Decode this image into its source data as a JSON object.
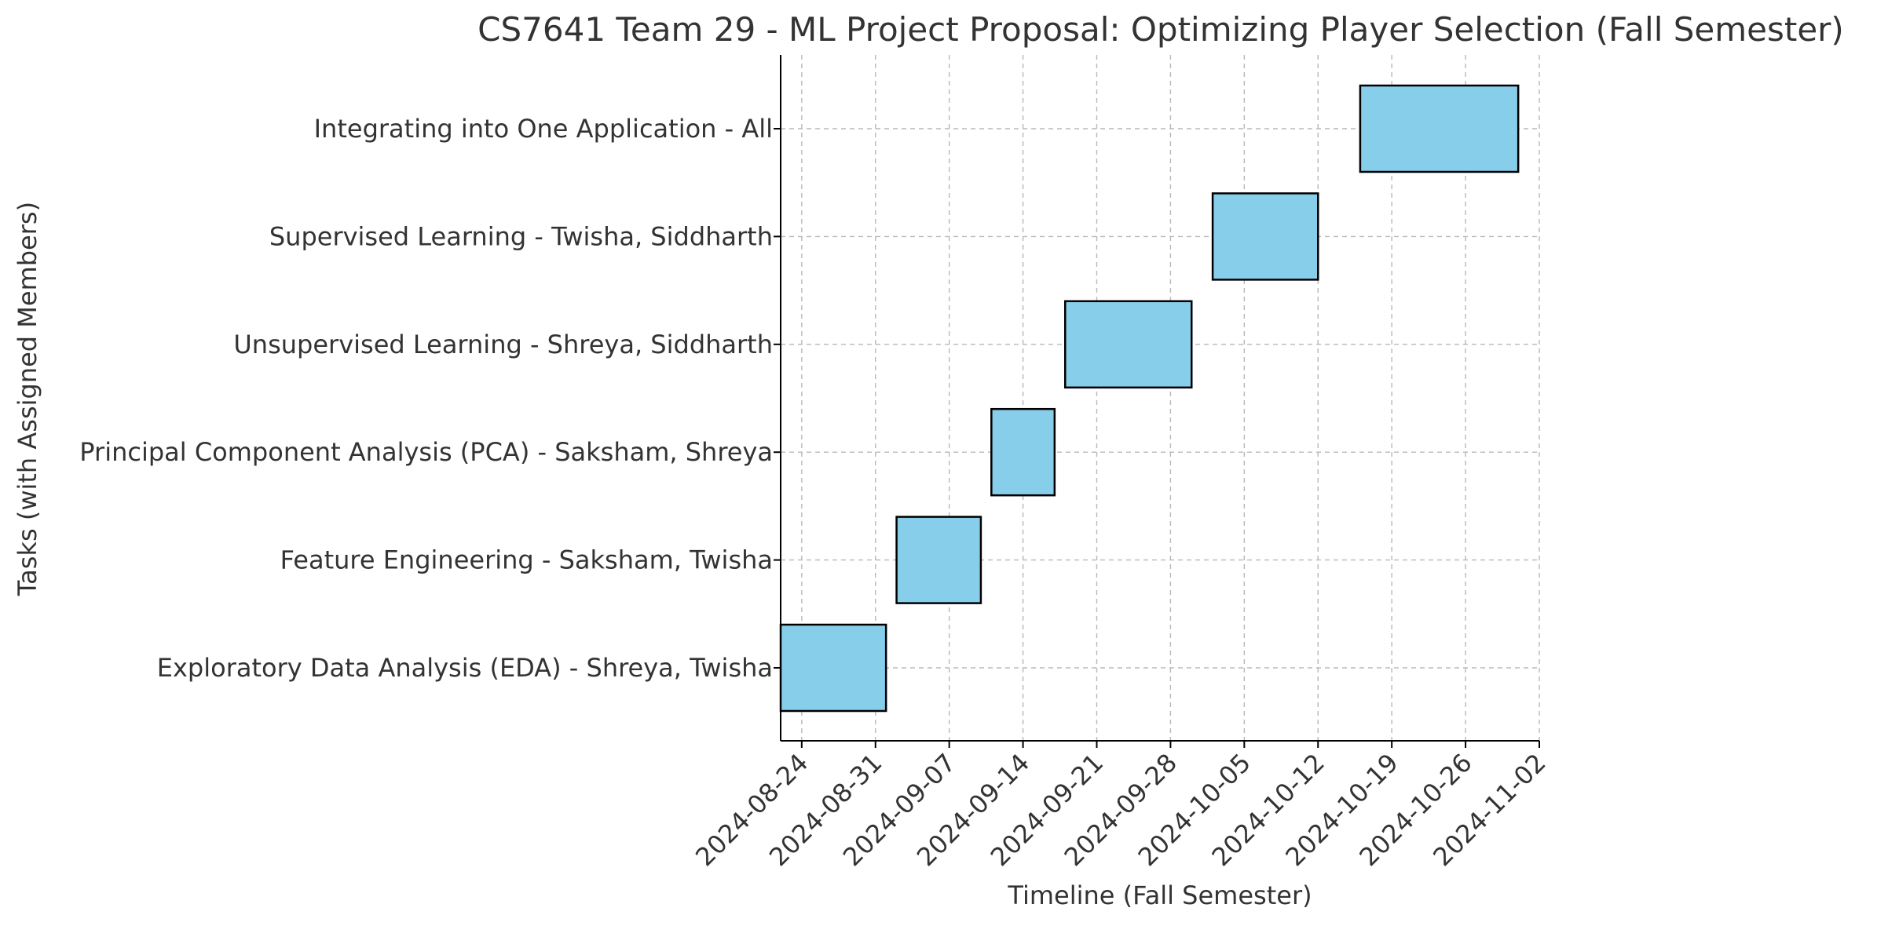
{
  "chart_data": {
    "type": "gantt",
    "title": "CS7641 Team 29 - ML Project Proposal: Optimizing Player Selection (Fall Semester)",
    "xlabel": "Timeline (Fall Semester)",
    "ylabel": "Tasks (with Assigned Members)",
    "bar_color": "#87ceeb",
    "bar_edge_color": "#000000",
    "grid": true,
    "x_range": [
      "2024-08-22",
      "2024-11-02"
    ],
    "x_ticks": [
      "2024-08-24",
      "2024-08-31",
      "2024-09-07",
      "2024-09-14",
      "2024-09-21",
      "2024-09-28",
      "2024-10-05",
      "2024-10-12",
      "2024-10-19",
      "2024-10-26",
      "2024-11-02"
    ],
    "tasks": [
      {
        "label": "Exploratory Data Analysis (EDA) - Shreya, Twisha",
        "start": "2024-08-22",
        "end": "2024-09-01"
      },
      {
        "label": "Feature Engineering - Saksham, Twisha",
        "start": "2024-09-02",
        "end": "2024-09-10"
      },
      {
        "label": "Principal Component Analysis (PCA) - Saksham, Shreya",
        "start": "2024-09-11",
        "end": "2024-09-17"
      },
      {
        "label": "Unsupervised Learning - Shreya, Siddharth",
        "start": "2024-09-18",
        "end": "2024-09-30"
      },
      {
        "label": "Supervised Learning - Twisha, Siddharth",
        "start": "2024-10-02",
        "end": "2024-10-12"
      },
      {
        "label": "Integrating into One Application - All",
        "start": "2024-10-16",
        "end": "2024-10-31"
      }
    ]
  }
}
